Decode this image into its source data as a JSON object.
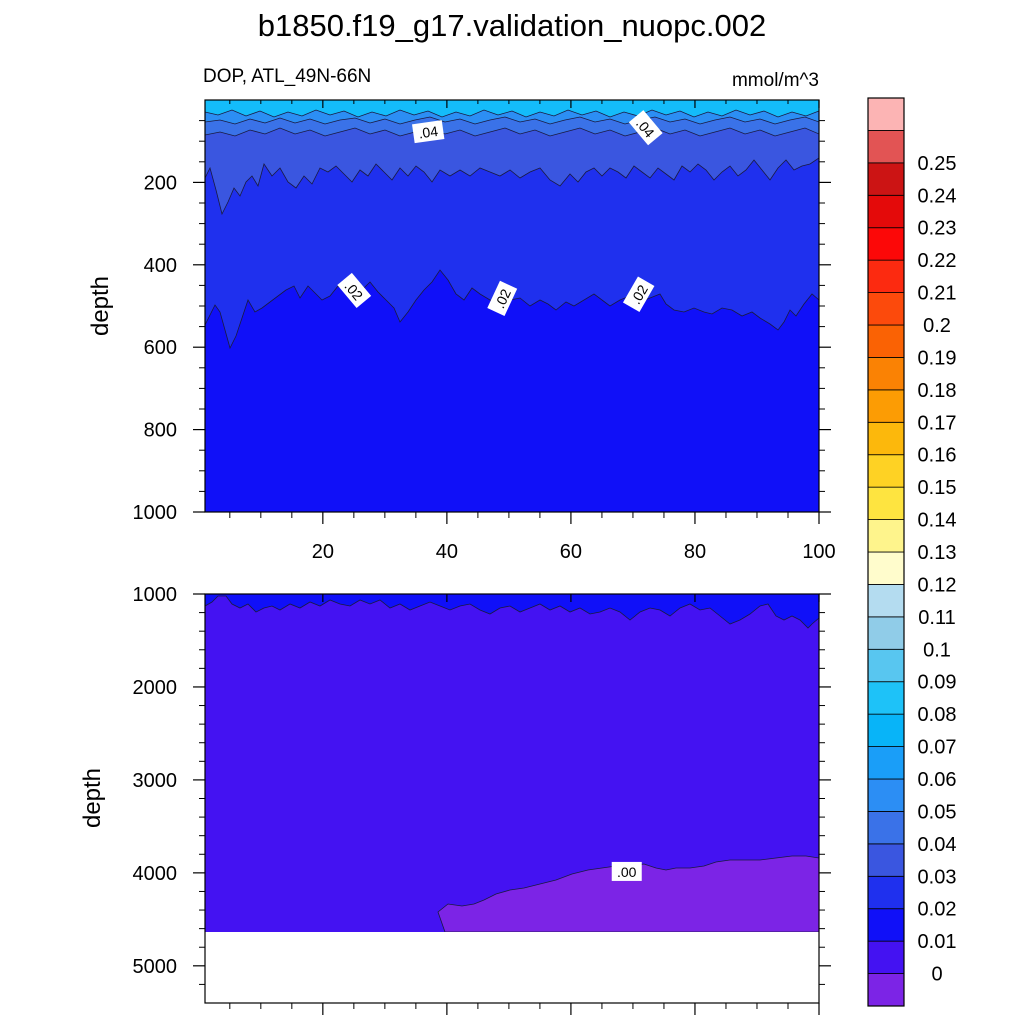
{
  "figure": {
    "title": "b1850.f19_g17.validation_nuopc.002",
    "left_label": "DOP, ATL_49N-66N",
    "units": "mmol/m^3"
  },
  "colors": {
    "c0": "#7c24e6",
    "c1": "#4412f2",
    "c2": "#1010f8",
    "c3": "#1f30ee",
    "c4": "#3a56e0",
    "c5": "#3a72e8",
    "c6": "#2c8ef4",
    "c7": "#1aa6fa",
    "c8": "#14bcfa",
    "cb_levels": [
      "#7c24e6",
      "#4412f2",
      "#1010f8",
      "#1f30ee",
      "#3a56e0",
      "#3a72e8",
      "#2c8ef4",
      "#1a9ef8",
      "#08b4f8",
      "#1ec2f8",
      "#58c6f0",
      "#90cce8",
      "#b4dcf0",
      "#fffccc",
      "#fef48c",
      "#fee440",
      "#fed224",
      "#fcb80c",
      "#fc9c04",
      "#fa8204",
      "#fa6204",
      "#fc4a0c",
      "#fc2a10",
      "#fc0808",
      "#e40a0a",
      "#cc1414",
      "#e25454",
      "#fcb4b4"
    ]
  },
  "chart_data": [
    {
      "type": "contour",
      "panel": "top",
      "x": [
        1,
        100
      ],
      "xlim": [
        1,
        100
      ],
      "ylim": [
        1000,
        0
      ],
      "ylabel": "depth",
      "xticks": [
        20,
        40,
        60,
        80,
        100
      ],
      "yticks": [
        200,
        400,
        600,
        800,
        1000
      ],
      "contour_labels": [
        {
          "text": ".04",
          "x": 37,
          "y": 78
        },
        {
          "text": ".04",
          "x": 72,
          "y": 68
        },
        {
          "text": ".02",
          "x": 25,
          "y": 463
        },
        {
          "text": ".02",
          "x": 49,
          "y": 482
        },
        {
          "text": ".02",
          "x": 71,
          "y": 472
        }
      ]
    },
    {
      "type": "contour",
      "panel": "bottom",
      "x": [
        1,
        100
      ],
      "xlim": [
        1,
        100
      ],
      "ylim": [
        5400,
        1000
      ],
      "ylabel": "depth",
      "yticks": [
        1000,
        2000,
        3000,
        4000,
        5000
      ],
      "ocean_floor_depth": 4600,
      "contour_labels": [
        {
          "text": ".00",
          "x": 69,
          "y": 3990
        }
      ]
    },
    {
      "type": "colorbar",
      "orientation": "vertical",
      "tick_labels": [
        "0",
        "0.01",
        "0.02",
        "0.03",
        "0.04",
        "0.05",
        "0.06",
        "0.07",
        "0.08",
        "0.09",
        "0.1",
        "0.11",
        "0.12",
        "0.13",
        "0.14",
        "0.15",
        "0.16",
        "0.17",
        "0.18",
        "0.19",
        "0.2",
        "0.21",
        "0.22",
        "0.23",
        "0.24",
        "0.25"
      ]
    }
  ]
}
